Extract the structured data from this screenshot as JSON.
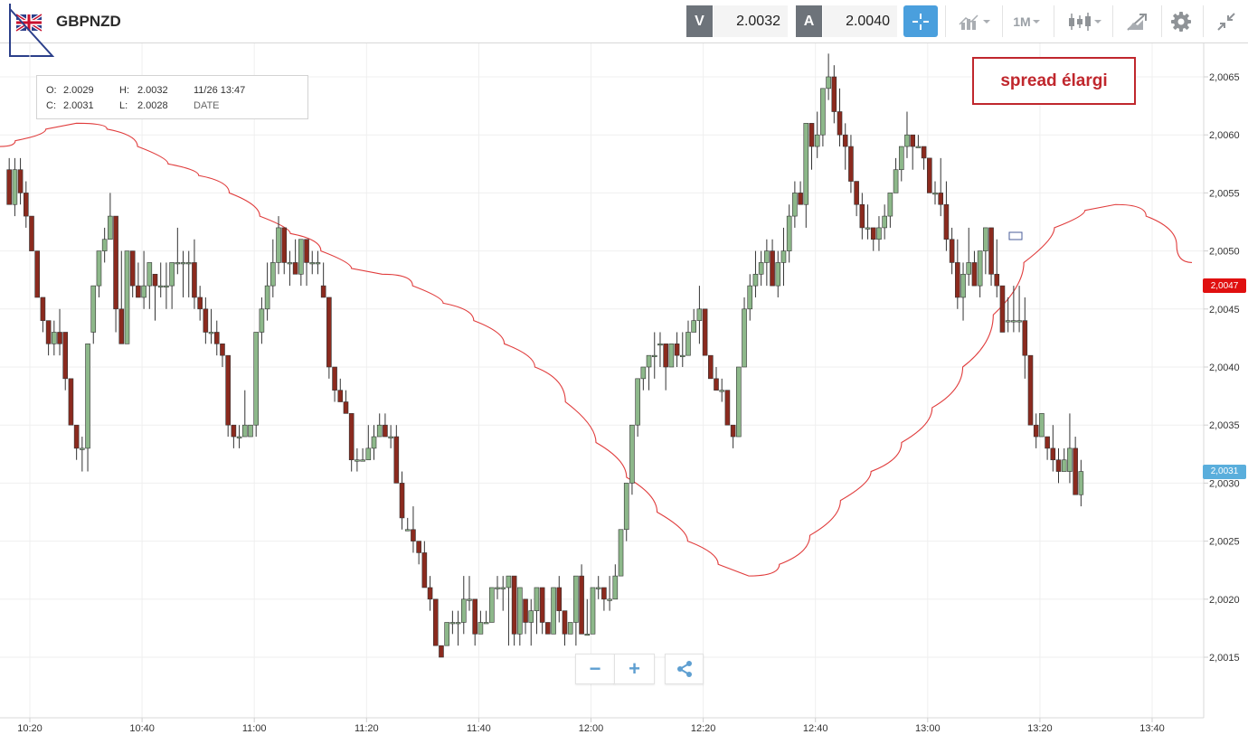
{
  "header": {
    "symbol": "GBPNZD",
    "sell_label": "V",
    "sell_price": "2.0032",
    "buy_label": "A",
    "buy_price": "2.0040",
    "timeframe": "1M",
    "icons": [
      "uk-flag-icon",
      "crosshair-icon",
      "indicators-icon",
      "timeframe-chevron-icon",
      "candlestick-icon",
      "drawing-tools-icon",
      "settings-gear-icon",
      "collapse-arrows-icon"
    ]
  },
  "ohlc": {
    "o_label": "O:",
    "o_value": "2.0029",
    "h_label": "H:",
    "h_value": "2.0032",
    "c_label": "C:",
    "c_value": "2.0031",
    "l_label": "L:",
    "l_value": "2.0028",
    "datetime": "11/26 13:47",
    "date_label": "DATE"
  },
  "annotation": {
    "text": "spread élargi",
    "color": "#c0272d"
  },
  "zoom": {
    "minus": "−",
    "plus": "+",
    "share_icon": "share-icon"
  },
  "colors": {
    "up": "#8db88a",
    "down": "#8b2a1e",
    "ma": "#e03c3c",
    "tag_red": "#e01010",
    "tag_blue": "#5aaedc"
  },
  "chart_data": {
    "type": "candlestick",
    "series_ma_name": "",
    "y_ticks": [
      "2,0015",
      "2,0020",
      "2,0025",
      "2,0030",
      "2,0035",
      "2,0040",
      "2,0045",
      "2,0050",
      "2,0055",
      "2,0060",
      "2,0065"
    ],
    "y_tick_values": [
      2.0015,
      2.002,
      2.0025,
      2.003,
      2.0035,
      2.004,
      2.0045,
      2.005,
      2.0055,
      2.006,
      2.0065
    ],
    "ylim": [
      2.001,
      2.0068
    ],
    "x_ticks": [
      "10:20",
      "10:40",
      "11:00",
      "11:20",
      "11:40",
      "12:00",
      "12:20",
      "12:40",
      "13:00",
      "13:20",
      "13:40"
    ],
    "current_price_tags": [
      {
        "label": "2,0047",
        "value": 2.0047,
        "color": "red"
      },
      {
        "label": "2,0031",
        "value": 2.0031,
        "color": "blue"
      }
    ],
    "candle_start_time": "10:16",
    "candle_interval": "1M",
    "candles_ohlc": [
      [
        2.0057,
        2.0058,
        2.0054,
        2.0054
      ],
      [
        2.0054,
        2.0058,
        2.0053,
        2.0057
      ],
      [
        2.0057,
        2.0058,
        2.0054,
        2.0055
      ],
      [
        2.0055,
        2.0056,
        2.0052,
        2.0053
      ],
      [
        2.0053,
        2.0053,
        2.005,
        2.005
      ],
      [
        2.005,
        2.005,
        2.0046,
        2.0046
      ],
      [
        2.0046,
        2.0046,
        2.0043,
        2.0044
      ],
      [
        2.0044,
        2.0044,
        2.0041,
        2.0042
      ],
      [
        2.0042,
        2.0044,
        2.0041,
        2.0043
      ],
      [
        2.0043,
        2.0045,
        2.0041,
        2.0042
      ],
      [
        2.0043,
        2.0043,
        2.0038,
        2.0039
      ],
      [
        2.0039,
        2.0039,
        2.0035,
        2.0035
      ],
      [
        2.0035,
        2.0035,
        2.0032,
        2.0033
      ],
      [
        2.0033,
        2.0034,
        2.0031,
        2.0033
      ],
      [
        2.0033,
        2.0042,
        2.0031,
        2.0042
      ],
      [
        2.0043,
        2.0047,
        2.0042,
        2.0047
      ],
      [
        2.0047,
        2.005,
        2.0046,
        2.005
      ],
      [
        2.005,
        2.0052,
        2.0049,
        2.0051
      ],
      [
        2.0051,
        2.0055,
        2.0051,
        2.0053
      ],
      [
        2.0053,
        2.0053,
        2.0043,
        2.0045
      ],
      [
        2.0045,
        2.005,
        2.0042,
        2.0042
      ],
      [
        2.0042,
        2.005,
        2.0042,
        2.005
      ],
      [
        2.005,
        2.005,
        2.0046,
        2.0047
      ],
      [
        2.0047,
        2.0049,
        2.0046,
        2.0046
      ],
      [
        2.0046,
        2.005,
        2.0045,
        2.0047
      ],
      [
        2.0047,
        2.0048,
        2.0045,
        2.0049
      ],
      [
        2.0048,
        2.0048,
        2.0044,
        2.0047
      ],
      [
        2.0047,
        2.0049,
        2.0046,
        2.0047
      ],
      [
        2.0047,
        2.0049,
        2.0045,
        2.0047
      ],
      [
        2.0047,
        2.0049,
        2.0045,
        2.0049
      ],
      [
        2.0049,
        2.0052,
        2.0048,
        2.0049
      ],
      [
        2.0049,
        2.005,
        2.0046,
        2.0049
      ],
      [
        2.0049,
        2.005,
        2.0046,
        2.0049
      ],
      [
        2.0049,
        2.0051,
        2.0045,
        2.0046
      ],
      [
        2.0046,
        2.0047,
        2.0044,
        2.0045
      ],
      [
        2.0045,
        2.0046,
        2.0042,
        2.0043
      ],
      [
        2.0043,
        2.0045,
        2.0042,
        2.0043
      ],
      [
        2.0043,
        2.0044,
        2.0041,
        2.0042
      ],
      [
        2.0042,
        2.0042,
        2.004,
        2.0041
      ],
      [
        2.0041,
        2.0041,
        2.0034,
        2.0035
      ],
      [
        2.0035,
        2.0035,
        2.0033,
        2.0034
      ],
      [
        2.0034,
        2.0035,
        2.0033,
        2.0034
      ],
      [
        2.0034,
        2.0038,
        2.0034,
        2.0035
      ],
      [
        2.0034,
        2.0035,
        2.0034,
        2.0035
      ],
      [
        2.0035,
        2.0043,
        2.0034,
        2.0043
      ],
      [
        2.0043,
        2.0046,
        2.0042,
        2.0045
      ],
      [
        2.0045,
        2.0049,
        2.0044,
        2.0047
      ],
      [
        2.0047,
        2.0051,
        2.0046,
        2.0049
      ],
      [
        2.0049,
        2.0053,
        2.0048,
        2.0052
      ],
      [
        2.0052,
        2.0052,
        2.0048,
        2.0049
      ],
      [
        2.0049,
        2.005,
        2.0047,
        2.0049
      ],
      [
        2.0049,
        2.0051,
        2.0048,
        2.0048
      ],
      [
        2.0048,
        2.0051,
        2.0047,
        2.0051
      ],
      [
        2.0051,
        2.0051,
        2.0047,
        2.0049
      ],
      [
        2.0049,
        2.005,
        2.0048,
        2.0049
      ],
      [
        2.0049,
        2.005,
        2.0048,
        2.0049
      ],
      [
        2.0047,
        2.0049,
        2.0046,
        2.0046
      ],
      [
        2.0046,
        2.0046,
        2.0039,
        2.004
      ],
      [
        2.004,
        2.004,
        2.0037,
        2.0038
      ],
      [
        2.0038,
        2.0039,
        2.0037,
        2.0037
      ],
      [
        2.0037,
        2.0038,
        2.0036,
        2.0036
      ],
      [
        2.0036,
        2.0036,
        2.0031,
        2.0032
      ],
      [
        2.0032,
        2.0033,
        2.0031,
        2.0032
      ],
      [
        2.0032,
        2.0033,
        2.0032,
        2.0032
      ],
      [
        2.0032,
        2.0035,
        2.0032,
        2.0033
      ],
      [
        2.0033,
        2.0035,
        2.0032,
        2.0034
      ],
      [
        2.0034,
        2.0036,
        2.0034,
        2.0035
      ],
      [
        2.0035,
        2.0036,
        2.0034,
        2.0034
      ],
      [
        2.0034,
        2.0035,
        2.0033,
        2.0034
      ],
      [
        2.0034,
        2.0035,
        2.003,
        2.003
      ],
      [
        2.003,
        2.0031,
        2.0026,
        2.0027
      ],
      [
        2.0026,
        2.0027,
        2.0026,
        2.0026
      ],
      [
        2.0026,
        2.0028,
        2.0024,
        2.0025
      ],
      [
        2.0025,
        2.0025,
        2.0023,
        2.0024
      ],
      [
        2.0024,
        2.0025,
        2.0021,
        2.0021
      ],
      [
        2.0021,
        2.0022,
        2.0019,
        2.002
      ],
      [
        2.002,
        2.002,
        2.0016,
        2.0016
      ],
      [
        2.0016,
        2.0016,
        2.0015,
        2.0015
      ],
      [
        2.0016,
        2.0018,
        2.0016,
        2.0018
      ],
      [
        2.0018,
        2.0019,
        2.0017,
        2.0018
      ],
      [
        2.0018,
        2.0019,
        2.0016,
        2.0018
      ],
      [
        2.0018,
        2.0022,
        2.0017,
        2.002
      ],
      [
        2.002,
        2.0022,
        2.0019,
        2.002
      ],
      [
        2.002,
        2.002,
        2.0016,
        2.0017
      ],
      [
        2.0017,
        2.0019,
        2.0017,
        2.0018
      ],
      [
        2.0018,
        2.0019,
        2.0018,
        2.0018
      ],
      [
        2.0018,
        2.0021,
        2.0018,
        2.0021
      ],
      [
        2.0021,
        2.0022,
        2.002,
        2.0021
      ],
      [
        2.0021,
        2.0022,
        2.0019,
        2.0021
      ],
      [
        2.0021,
        2.0022,
        2.0016,
        2.0022
      ],
      [
        2.0022,
        2.0022,
        2.0016,
        2.0017
      ],
      [
        2.0017,
        2.0021,
        2.0016,
        2.0021
      ],
      [
        2.002,
        2.002,
        2.0017,
        2.0018
      ],
      [
        2.0018,
        2.002,
        2.0016,
        2.0019
      ],
      [
        2.0019,
        2.0021,
        2.0017,
        2.0021
      ],
      [
        2.0021,
        2.0021,
        2.0017,
        2.0018
      ],
      [
        2.0018,
        2.0018,
        2.0017,
        2.0017
      ],
      [
        2.0017,
        2.0021,
        2.0017,
        2.0021
      ],
      [
        2.0021,
        2.0022,
        2.0018,
        2.0019
      ],
      [
        2.0019,
        2.0019,
        2.0016,
        2.0017
      ],
      [
        2.0017,
        2.0018,
        2.0017,
        2.0018
      ],
      [
        2.0018,
        2.0022,
        2.0016,
        2.0022
      ],
      [
        2.0022,
        2.0023,
        2.0017,
        2.0017
      ],
      [
        2.0017,
        2.002,
        2.0017,
        2.0017
      ],
      [
        2.0017,
        2.0021,
        2.0017,
        2.0021
      ],
      [
        2.0021,
        2.0022,
        2.002,
        2.0021
      ],
      [
        2.0021,
        2.0021,
        2.0019,
        2.002
      ],
      [
        2.002,
        2.0022,
        2.0019,
        2.002
      ],
      [
        2.002,
        2.0023,
        2.002,
        2.0022
      ],
      [
        2.0022,
        2.0026,
        2.0022,
        2.0026
      ],
      [
        2.0026,
        2.003,
        2.0025,
        2.003
      ],
      [
        2.003,
        2.0035,
        2.0029,
        2.0035
      ],
      [
        2.0035,
        2.0039,
        2.0034,
        2.0039
      ],
      [
        2.0039,
        2.004,
        2.0038,
        2.004
      ],
      [
        2.004,
        2.0041,
        2.0038,
        2.0041
      ],
      [
        2.0041,
        2.0043,
        2.0039,
        2.0041
      ],
      [
        2.0042,
        2.0043,
        2.004,
        2.0042
      ],
      [
        2.0042,
        2.0042,
        2.0038,
        2.004
      ],
      [
        2.004,
        2.0042,
        2.004,
        2.0042
      ],
      [
        2.0042,
        2.0043,
        2.004,
        2.0041
      ],
      [
        2.0041,
        2.0043,
        2.004,
        2.0041
      ],
      [
        2.0041,
        2.0044,
        2.0041,
        2.0043
      ],
      [
        2.0043,
        2.0045,
        2.0043,
        2.0044
      ],
      [
        2.0044,
        2.0047,
        2.0042,
        2.0045
      ],
      [
        2.0045,
        2.0045,
        2.0042,
        2.0041
      ],
      [
        2.0041,
        2.0041,
        2.0039,
        2.0039
      ],
      [
        2.0039,
        2.004,
        2.0038,
        2.0038
      ],
      [
        2.0038,
        2.0039,
        2.0037,
        2.0038
      ],
      [
        2.0038,
        2.0038,
        2.0035,
        2.0035
      ],
      [
        2.0035,
        2.0035,
        2.0033,
        2.0034
      ],
      [
        2.0034,
        2.004,
        2.0034,
        2.004
      ],
      [
        2.004,
        2.0046,
        2.004,
        2.0045
      ],
      [
        2.0045,
        2.0048,
        2.0044,
        2.0047
      ],
      [
        2.0047,
        2.005,
        2.0046,
        2.0048
      ],
      [
        2.0048,
        2.005,
        2.0047,
        2.0049
      ],
      [
        2.0049,
        2.0051,
        2.0047,
        2.005
      ],
      [
        2.005,
        2.0051,
        2.0047,
        2.0047
      ],
      [
        2.0047,
        2.005,
        2.0046,
        2.0049
      ],
      [
        2.0049,
        2.0052,
        2.0047,
        2.005
      ],
      [
        2.005,
        2.0054,
        2.0049,
        2.0053
      ],
      [
        2.0053,
        2.0056,
        2.0052,
        2.0055
      ],
      [
        2.0055,
        2.0056,
        2.0054,
        2.0054
      ],
      [
        2.0054,
        2.0061,
        2.0052,
        2.0061
      ],
      [
        2.0061,
        2.0061,
        2.0057,
        2.0059
      ],
      [
        2.0059,
        2.0062,
        2.0058,
        2.006
      ],
      [
        2.006,
        2.0064,
        2.0059,
        2.0064
      ],
      [
        2.0064,
        2.0067,
        2.0063,
        2.0065
      ],
      [
        2.0065,
        2.0066,
        2.0061,
        2.0062
      ],
      [
        2.0062,
        2.0064,
        2.0059,
        2.006
      ],
      [
        2.006,
        2.0061,
        2.0057,
        2.0059
      ],
      [
        2.0059,
        2.006,
        2.0055,
        2.0056
      ],
      [
        2.0056,
        2.0056,
        2.0053,
        2.0054
      ],
      [
        2.0054,
        2.0055,
        2.0051,
        2.0052
      ],
      [
        2.0052,
        2.0054,
        2.0051,
        2.0052
      ],
      [
        2.0052,
        2.0052,
        2.005,
        2.0051
      ],
      [
        2.0051,
        2.0053,
        2.005,
        2.0052
      ],
      [
        2.0052,
        2.0054,
        2.0051,
        2.0053
      ],
      [
        2.0053,
        2.0055,
        2.0052,
        2.0055
      ],
      [
        2.0055,
        2.0058,
        2.0055,
        2.0057
      ],
      [
        2.0057,
        2.0059,
        2.0056,
        2.0059
      ],
      [
        2.0059,
        2.0062,
        2.0058,
        2.006
      ],
      [
        2.006,
        2.006,
        2.0057,
        2.0059
      ],
      [
        2.0059,
        2.006,
        2.0059,
        2.0059
      ],
      [
        2.0059,
        2.0059,
        2.0057,
        2.0058
      ],
      [
        2.0058,
        2.0058,
        2.0055,
        2.0055
      ],
      [
        2.0055,
        2.0056,
        2.0054,
        2.0055
      ],
      [
        2.0055,
        2.0058,
        2.0053,
        2.0054
      ],
      [
        2.0054,
        2.0056,
        2.005,
        2.0051
      ],
      [
        2.0051,
        2.0052,
        2.0048,
        2.0049
      ],
      [
        2.0049,
        2.0051,
        2.0045,
        2.0046
      ],
      [
        2.0046,
        2.0049,
        2.0044,
        2.0048
      ],
      [
        2.0048,
        2.0052,
        2.0047,
        2.0049
      ],
      [
        2.0049,
        2.005,
        2.0047,
        2.0047
      ],
      [
        2.0047,
        2.005,
        2.0046,
        2.005
      ],
      [
        2.005,
        2.0052,
        2.0048,
        2.0052
      ],
      [
        2.0052,
        2.0052,
        2.0047,
        2.0048
      ],
      [
        2.0048,
        2.0051,
        2.0046,
        2.0047
      ],
      [
        2.0047,
        2.0047,
        2.0043,
        2.0043
      ],
      [
        2.0044,
        2.0046,
        2.0043,
        2.0044
      ],
      [
        2.0044,
        2.0047,
        2.0043,
        2.0044
      ],
      [
        2.0044,
        2.0047,
        2.0043,
        2.0044
      ],
      [
        2.0044,
        2.0046,
        2.0039,
        2.0041
      ],
      [
        2.0041,
        2.0041,
        2.0035,
        2.0035
      ],
      [
        2.0035,
        2.0036,
        2.0033,
        2.0034
      ],
      [
        2.0034,
        2.0036,
        2.0034,
        2.0036
      ],
      [
        2.0034,
        2.0034,
        2.0032,
        2.0033
      ],
      [
        2.0033,
        2.0035,
        2.0031,
        2.0032
      ],
      [
        2.0032,
        2.0033,
        2.003,
        2.0031
      ],
      [
        2.0031,
        2.0033,
        2.0031,
        2.0032
      ],
      [
        2.0031,
        2.0036,
        2.003,
        2.0033
      ],
      [
        2.0033,
        2.0034,
        2.003,
        2.0029
      ],
      [
        2.0029,
        2.0032,
        2.0028,
        2.0031
      ]
    ],
    "ma": [
      2.0059,
      2.006,
      2.0061,
      2.0061,
      2.006,
      2.0058,
      2.0057,
      2.0056,
      2.0054,
      2.0052,
      2.0051,
      2.0049,
      2.0048,
      2.0048,
      2.0046,
      2.0045,
      2.0043,
      2.0041,
      2.0039,
      2.0035,
      2.0032,
      2.0029,
      2.0026,
      2.0024,
      2.0022,
      2.0022,
      2.0024,
      2.0027,
      2.003,
      2.0032,
      2.0035,
      2.0038,
      2.0042,
      2.0047,
      2.0051,
      2.0053,
      2.0054,
      2.0054,
      2.0052,
      2.0049
    ]
  }
}
